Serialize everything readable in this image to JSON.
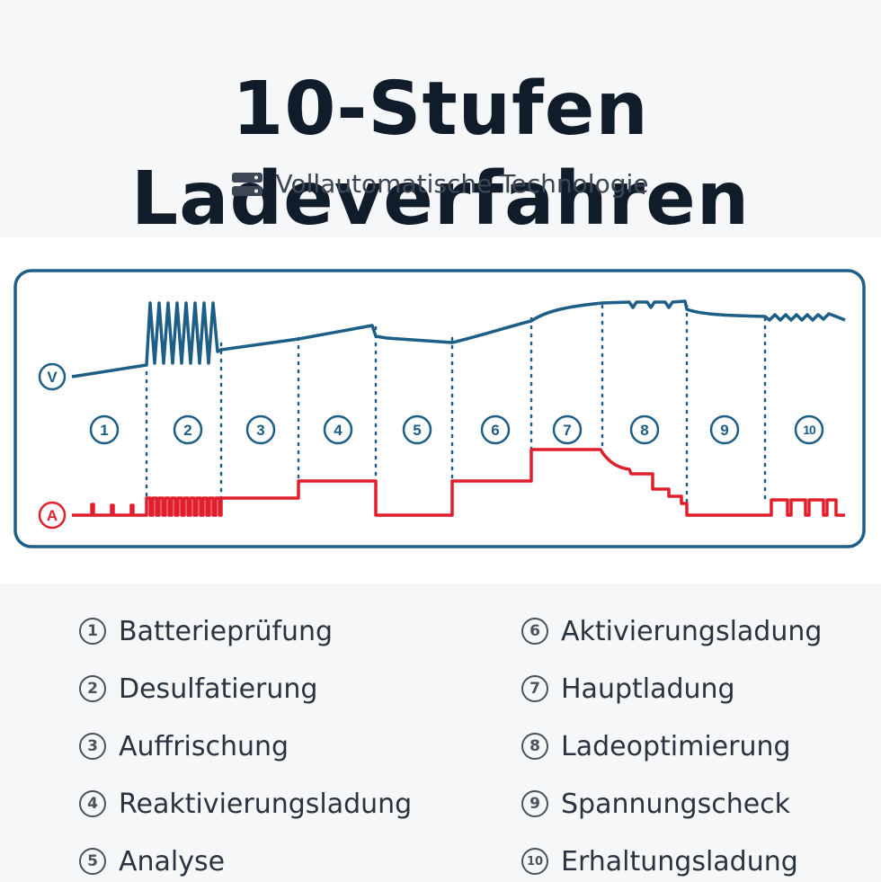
{
  "header": {
    "title": "10-Stufen Ladeverfahren",
    "subtitle": "Vollautomatische Technologie",
    "subtitle_icon": "server-icon"
  },
  "diagram": {
    "voltage_marker": "V",
    "current_marker": "A",
    "voltage_color": "#1d5e86",
    "current_color": "#e01e2c",
    "frame_color": "#1d5e86",
    "stages": [
      "1",
      "2",
      "3",
      "4",
      "5",
      "6",
      "7",
      "8",
      "9",
      "10"
    ]
  },
  "legend": {
    "items": [
      {
        "num": "1",
        "label": "Batterieprüfung"
      },
      {
        "num": "2",
        "label": "Desulfatierung"
      },
      {
        "num": "3",
        "label": "Auffrischung"
      },
      {
        "num": "4",
        "label": "Reaktivierungsladung"
      },
      {
        "num": "5",
        "label": "Analyse"
      },
      {
        "num": "6",
        "label": "Aktivierungsladung"
      },
      {
        "num": "7",
        "label": "Hauptladung"
      },
      {
        "num": "8",
        "label": "Ladeoptimierung"
      },
      {
        "num": "9",
        "label": "Spannungscheck"
      },
      {
        "num": "10",
        "label": "Erhaltungsladung"
      }
    ]
  }
}
